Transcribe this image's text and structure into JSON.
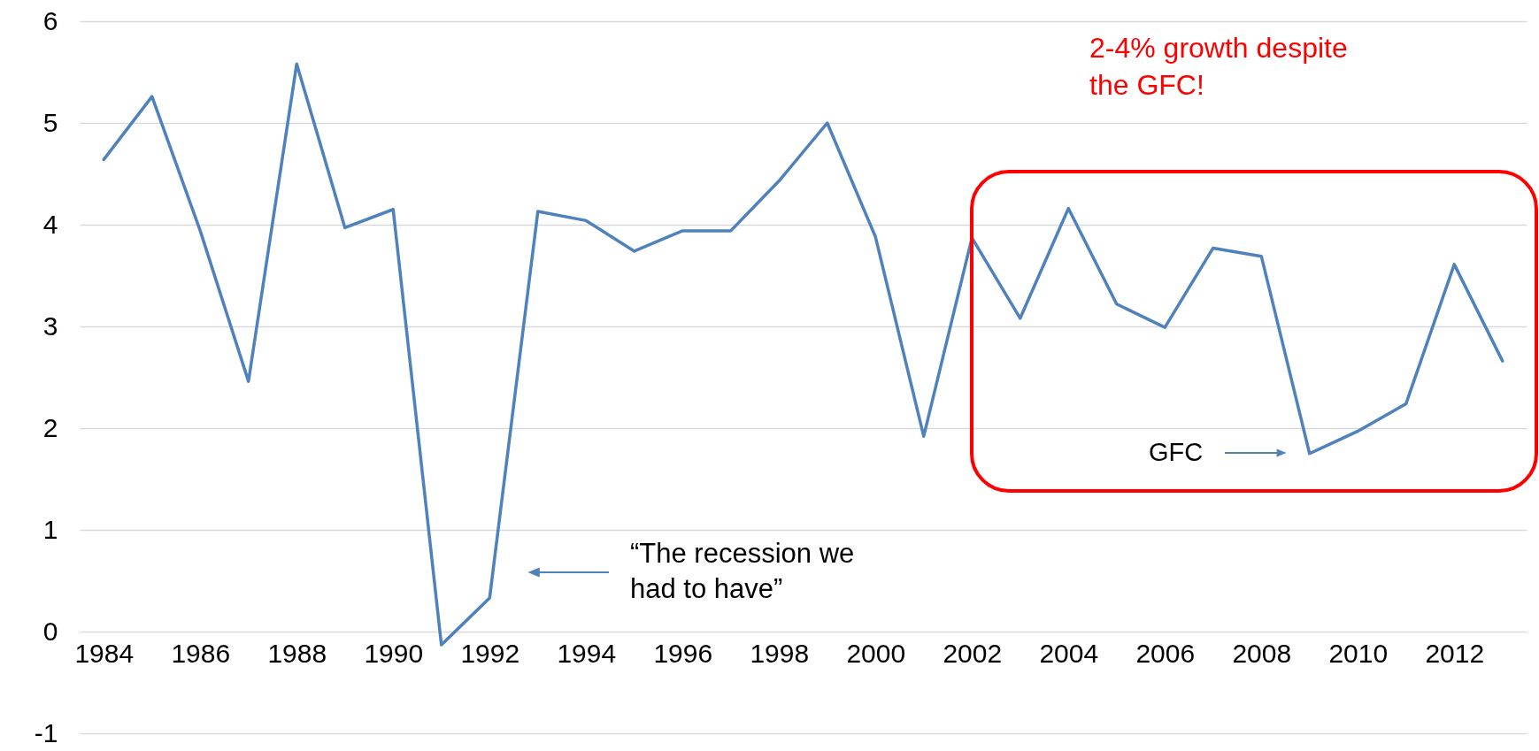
{
  "chart_data": {
    "type": "line",
    "categories": [
      "1984",
      null,
      "1986",
      null,
      "1988",
      null,
      "1990",
      null,
      "1992",
      null,
      "1994",
      null,
      "1996",
      null,
      "1998",
      null,
      "2000",
      null,
      "2002",
      null,
      "2004",
      null,
      "2006",
      null,
      "2008",
      null,
      "2010",
      null,
      "2012",
      null
    ],
    "series": [
      {
        "color": "#4f81bd",
        "values": [
          4.64,
          5.26,
          3.94,
          2.46,
          5.58,
          3.97,
          4.15,
          -0.13,
          0.33,
          4.13,
          4.04,
          3.74,
          3.94,
          3.94,
          4.43,
          5.0,
          3.88,
          1.92,
          3.87,
          3.08,
          4.16,
          3.22,
          2.99,
          3.77,
          3.69,
          1.75,
          1.97,
          2.24,
          3.61,
          2.66
        ]
      }
    ],
    "ylim": [
      -1,
      6
    ],
    "yticks": [
      -1,
      0,
      1,
      2,
      3,
      4,
      5,
      6
    ],
    "grid": "y",
    "annotations": [
      "2-4% growth despite the GFC!",
      "“The recession we had to have”",
      "GFC"
    ]
  }
}
